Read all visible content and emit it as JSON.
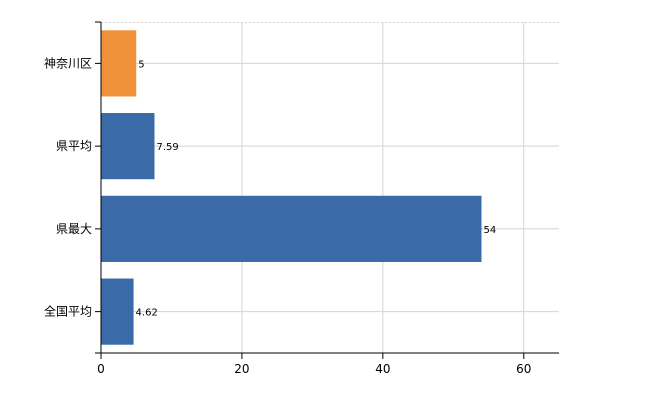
{
  "chart_data": {
    "type": "bar",
    "orientation": "horizontal",
    "categories": [
      "神奈川区",
      "県平均",
      "県最大",
      "全国平均"
    ],
    "values": [
      5,
      7.59,
      54,
      4.62
    ],
    "value_labels": [
      "5",
      "7.59",
      "54",
      "4.62"
    ],
    "bar_colors": [
      "#f0923a",
      "#3a6aa8",
      "#3a6aa8",
      "#3a6aa8"
    ],
    "xlim": [
      0,
      65
    ],
    "x_ticks": [
      0,
      20,
      40,
      60
    ],
    "grid": true,
    "legend": "none"
  }
}
